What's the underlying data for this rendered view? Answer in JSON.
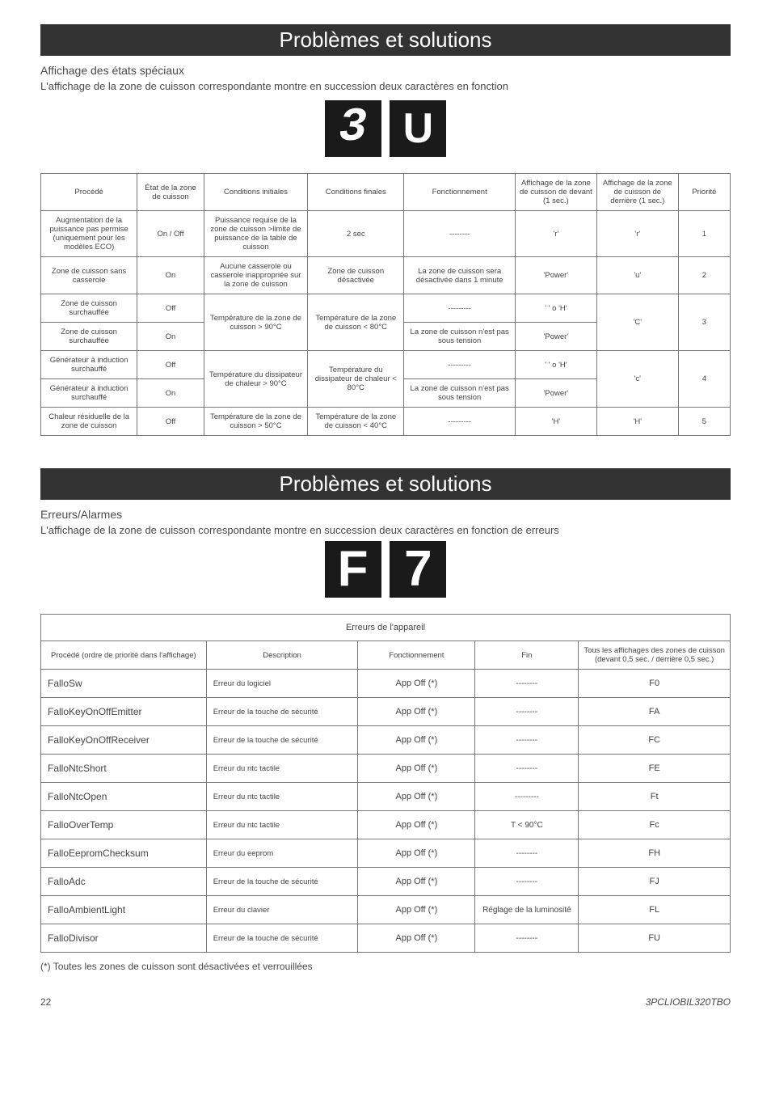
{
  "section1": {
    "banner": "Problèmes et solutions",
    "subtitle": "Affichage des états spéciaux",
    "desc": "L'affichage de la zone de cuisson correspondante montre en succession deux caractères en fonction",
    "glyphA": "3",
    "glyphB": "U",
    "table": {
      "head": [
        "Procédé",
        "État de\nla zone\nde cuisson",
        "Conditions\ninitiales",
        "Conditions\nfinales",
        "Fonctionnement",
        "Affichage\nde la zone\nde cuisson\nde devant\n(1 sec.)",
        "Affichage\nde la zone\nde cuisson\nde derrière\n(1 sec.)",
        "Priorité"
      ],
      "rows": [
        {
          "c0": "Augmentation de la puissance pas permise (uniquement pour les modèles ECO)",
          "c1": "On / Off",
          "c2": "Puissance requise de la zone de cuisson >limite de puissance de la table de cuisson",
          "c3": "2 sec",
          "c4": "--------",
          "c5": "'r'",
          "c6": "'r'",
          "c7": "1"
        },
        {
          "c0": "Zone de cuisson sans casserole",
          "c1": "On",
          "c2": "Aucune casserole ou casserole inappropriée sur la zone de cuisson",
          "c3": "Zone de cuisson désactivée",
          "c4": "La zone de cuisson sera désactivée dans 1 minute",
          "c5": "'Power'",
          "c6": "'u'",
          "c7": "2"
        },
        {
          "c0": "Zone de cuisson surchauffée",
          "c1": "Off",
          "c2": "Température de la zone de cuisson > 90°C",
          "c3": "Température de la zone de cuisson < 80°C",
          "c4": "---------",
          "c5": "' ' o 'H'",
          "c6": "'C'",
          "c7": "3"
        },
        {
          "c0": "Zone de cuisson surchauffée",
          "c1": "On",
          "c2": "",
          "c3": "",
          "c4": "La zone de cuisson n'est pas sous tension",
          "c5": "'Power'",
          "c6": "",
          "c7": ""
        },
        {
          "c0": "Générateur à induction surchauffé",
          "c1": "Off",
          "c2": "Température du dissipateur de chaleur > 90°C",
          "c3": "Température du dissipateur de chaleur < 80°C",
          "c4": "---------",
          "c5": "' ' o 'H'",
          "c6": "'c'",
          "c7": "4"
        },
        {
          "c0": "Générateur à induction surchauffé",
          "c1": "On",
          "c2": "",
          "c3": "",
          "c4": "La zone de cuisson n'est pas sous tension",
          "c5": "'Power'",
          "c6": "",
          "c7": ""
        },
        {
          "c0": "Chaleur résiduelle de la zone de cuisson",
          "c1": "Off",
          "c2": "Température de la zone de cuisson > 50°C",
          "c3": "Température de la zone de cuisson < 40°C",
          "c4": "---------",
          "c5": "'H'",
          "c6": "'H'",
          "c7": "5"
        }
      ]
    }
  },
  "section2": {
    "banner": "Problèmes et solutions",
    "subtitle": "Erreurs/Alarmes",
    "desc": "L'affichage de la zone de cuisson correspondante montre en succession deux caractères en fonction de erreurs",
    "glyphA": "F",
    "glyphB": "7",
    "tableTitle": "Erreurs de l'appareil",
    "table": {
      "head": [
        "Procédé (ordre de priorité dans l'affichage)",
        "Description",
        "Fonctionnement",
        "Fin",
        "Tous les affichages des zones de cuisson (devant 0,5 sec. / derrière 0,5 sec.)"
      ],
      "rows": [
        {
          "c0": "FalloSw",
          "c1": "Erreur du logiciel",
          "c2": "App Off (*)",
          "c3": "--------",
          "c4": "F0"
        },
        {
          "c0": "FalloKeyOnOffEmitter",
          "c1": "Erreur de la touche de sécurité",
          "c2": "App Off (*)",
          "c3": "--------",
          "c4": "FA"
        },
        {
          "c0": "FalloKeyOnOffReceiver",
          "c1": "Erreur de la touche de sécurité",
          "c2": "App Off (*)",
          "c3": "--------",
          "c4": "FC"
        },
        {
          "c0": "FalloNtcShort",
          "c1": "Erreur du ntc tactile",
          "c2": "App Off (*)",
          "c3": "--------",
          "c4": "FE"
        },
        {
          "c0": "FalloNtcOpen",
          "c1": "Erreur du ntc tactile",
          "c2": "App Off (*)",
          "c3": "---------",
          "c4": "Ft"
        },
        {
          "c0": "FalloOverTemp",
          "c1": "Erreur du ntc tactile",
          "c2": "App Off (*)",
          "c3": "T < 90°C",
          "c4": "Fc"
        },
        {
          "c0": "FalloEepromChecksum",
          "c1": "Erreur du eeprom",
          "c2": "App Off (*)",
          "c3": "--------",
          "c4": "FH"
        },
        {
          "c0": "FalloAdc",
          "c1": "Erreur de la touche de sécurité",
          "c2": "App Off (*)",
          "c3": "--------",
          "c4": "FJ"
        },
        {
          "c0": "FalloAmbientLight",
          "c1": "Erreur du clavier",
          "c2": "App Off (*)",
          "c3": "Réglage de la luminosité",
          "c4": "FL"
        },
        {
          "c0": "FalloDivisor",
          "c1": "Erreur de la touche de sécurité",
          "c2": "App Off (*)",
          "c3": "--------",
          "c4": "FU"
        }
      ]
    },
    "footnote": "(*) Toutes les zones de cuisson sont désactivées et verrouillées"
  },
  "footer": {
    "page": "22",
    "code": "3PCLIOBIL320TBO"
  }
}
